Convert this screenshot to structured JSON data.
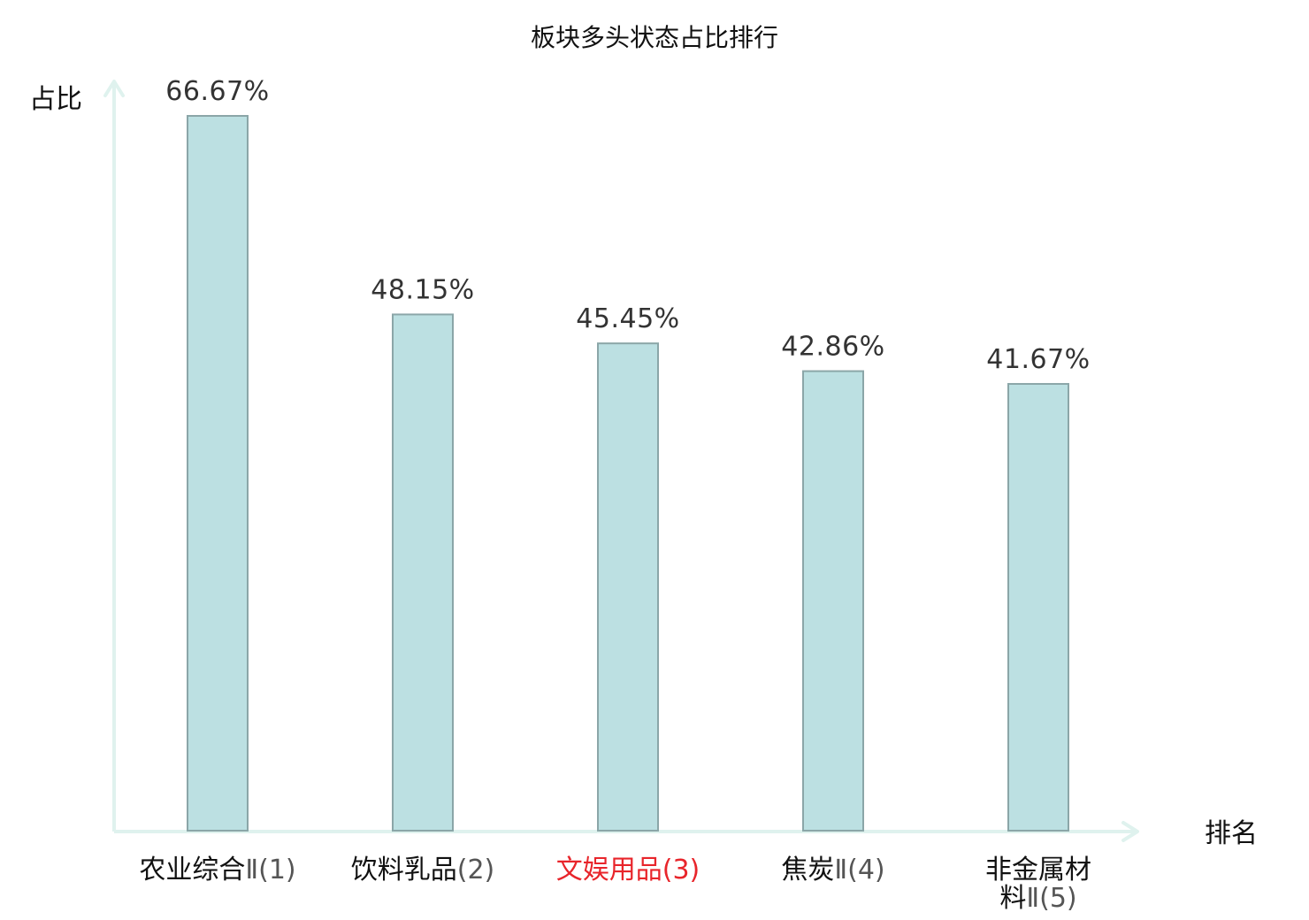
{
  "chart_data": {
    "type": "bar",
    "title": "板块多头状态占比排行",
    "ylabel": "占比",
    "xlabel": "排名",
    "categories": [
      {
        "line1": "农业综合",
        "line2": "Ⅱ(1)",
        "rank_name": "农业综合Ⅱ",
        "rank": "(1)"
      },
      {
        "line1": "饮料乳品(2)",
        "line2": "",
        "rank_name": "饮料乳品",
        "rank": "(2)"
      },
      {
        "line1": "文娱用品(3)",
        "line2": "",
        "rank_name": "文娱用品",
        "rank": "(3)"
      },
      {
        "line1": "焦炭Ⅱ(4)",
        "line2": "",
        "rank_name": "焦炭Ⅱ",
        "rank": "(4)"
      },
      {
        "line1": "非金属材",
        "line2": "料Ⅱ(5)",
        "rank_name": "非金属材料Ⅱ",
        "rank": "(5)"
      }
    ],
    "values": [
      66.67,
      48.15,
      45.45,
      42.86,
      41.67
    ],
    "value_labels": [
      "66.67%",
      "48.15%",
      "45.45%",
      "42.86%",
      "41.67%"
    ],
    "highlight_index": 2,
    "ylim": [
      0,
      70
    ],
    "grid": false,
    "legend": "none",
    "colors": {
      "bar_fill": "#bce0e2",
      "bar_stroke": "#8ba6a8",
      "axis": "#dff2ee",
      "highlight": "#e8252b",
      "text": "#111111",
      "value_text": "#333333"
    }
  }
}
